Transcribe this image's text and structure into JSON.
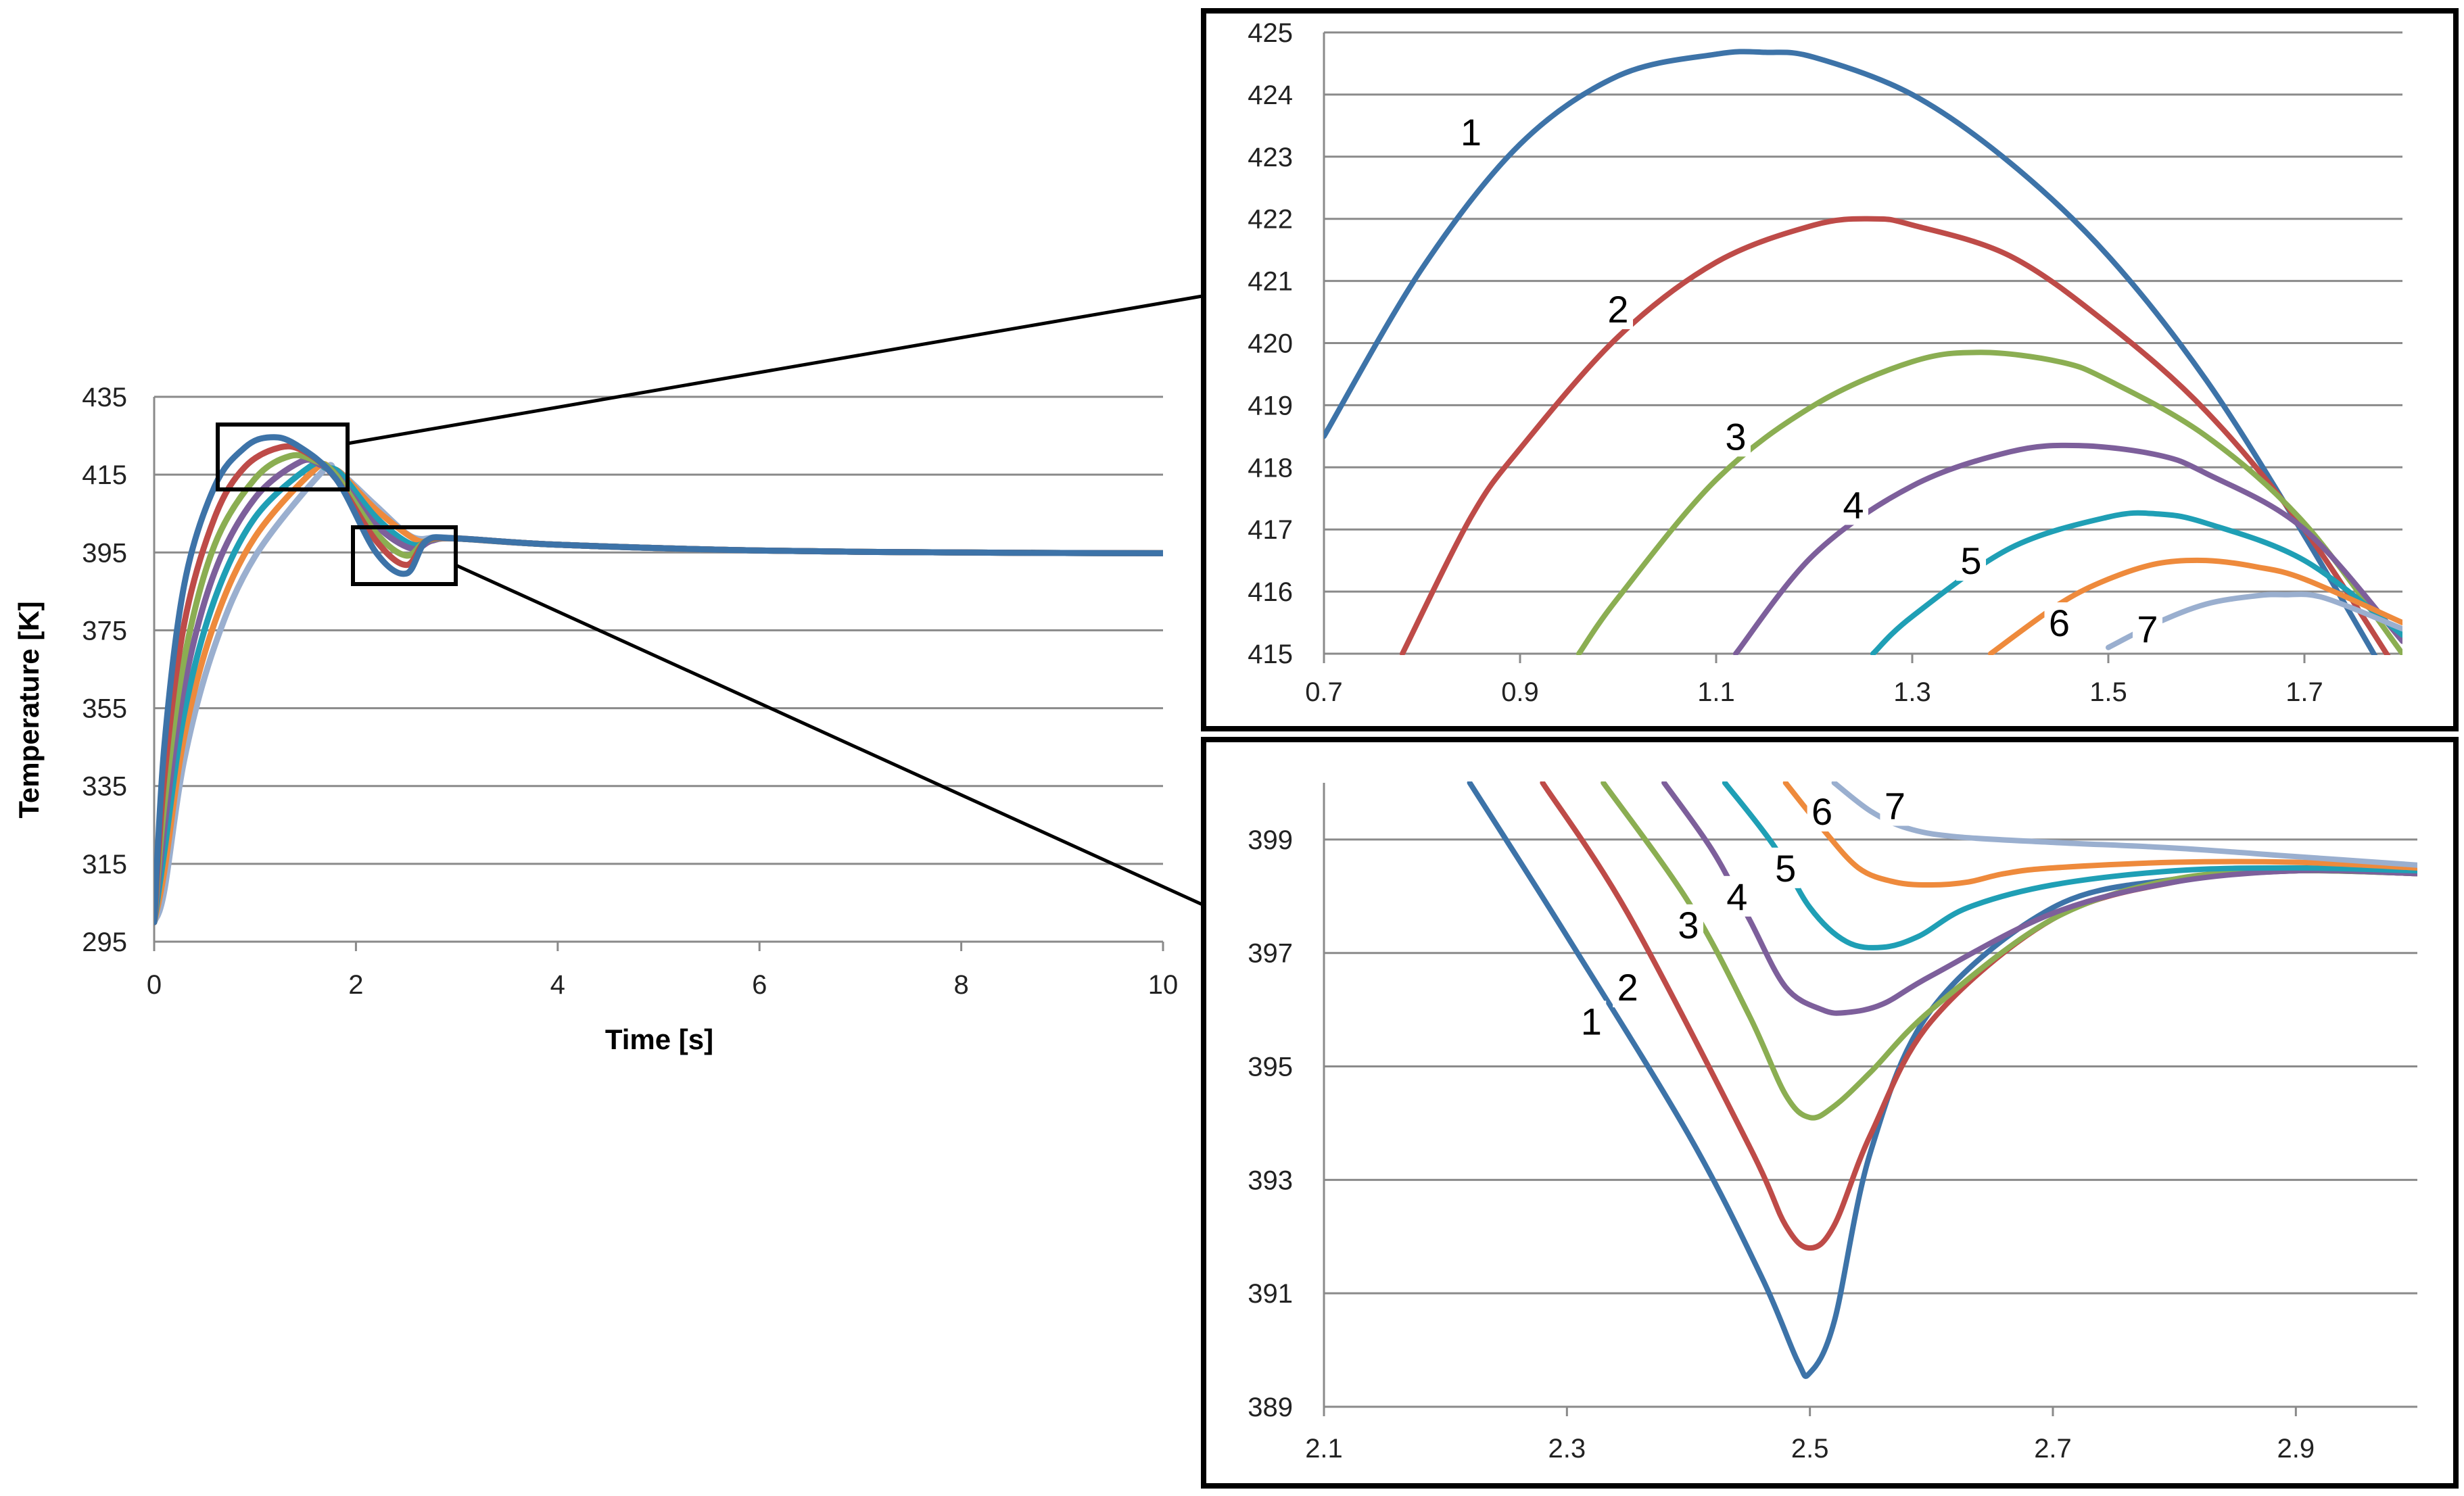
{
  "colors": {
    "series": [
      "#3d73a8",
      "#be4b48",
      "#8bae52",
      "#7d5f9b",
      "#1f9fb5",
      "#ee8a3c",
      "#9aafcf"
    ],
    "grid": "#8a8a8a",
    "frame": "#000000"
  },
  "chart_data": [
    {
      "type": "line",
      "xlabel": "Time [s]",
      "ylabel": "Temperature [K]",
      "xlim": [
        0,
        10
      ],
      "ylim": [
        295,
        435
      ],
      "xticks": [
        0,
        2,
        4,
        6,
        8,
        10
      ],
      "yticks": [
        295,
        315,
        335,
        355,
        375,
        395,
        415,
        435
      ],
      "grid": "horizontal",
      "series": [
        {
          "label": "1",
          "x": [
            0,
            0.1,
            0.3,
            0.6,
            0.9,
            1.15,
            1.4,
            1.8,
            2.2,
            2.5,
            2.7,
            3,
            4,
            6,
            8,
            10
          ],
          "y": [
            300,
            345,
            387,
            412,
            422,
            424.6,
            422.8,
            414,
            395,
            389.6,
            398,
            398.6,
            397,
            395.5,
            395,
            394.8
          ]
        },
        {
          "label": "2",
          "x": [
            0,
            0.1,
            0.3,
            0.6,
            0.9,
            1.25,
            1.5,
            1.8,
            2.2,
            2.5,
            2.7,
            3,
            4,
            6,
            8,
            10
          ],
          "y": [
            300,
            337,
            377,
            404,
            417,
            422,
            420.8,
            414,
            398,
            391.8,
            398,
            398.6,
            397,
            395.5,
            395,
            394.8
          ]
        },
        {
          "label": "3",
          "x": [
            0,
            0.1,
            0.3,
            0.6,
            1.0,
            1.35,
            1.6,
            1.8,
            2.2,
            2.5,
            2.7,
            3,
            4,
            6,
            8,
            10
          ],
          "y": [
            300,
            330,
            368,
            397,
            414,
            419.8,
            418.5,
            415,
            400,
            394.2,
            398,
            398.6,
            397,
            395.5,
            395,
            394.8
          ]
        },
        {
          "label": "4",
          "x": [
            0,
            0.1,
            0.3,
            0.6,
            1.0,
            1.45,
            1.65,
            1.8,
            2.2,
            2.55,
            2.75,
            3,
            4,
            6,
            8,
            10
          ],
          "y": [
            300,
            324,
            361,
            390,
            409,
            418.3,
            417.5,
            415.2,
            402,
            396,
            398,
            398.6,
            397,
            395.5,
            395,
            394.8
          ]
        },
        {
          "label": "5",
          "x": [
            0,
            0.1,
            0.3,
            0.6,
            1.0,
            1.55,
            1.7,
            1.85,
            2.2,
            2.55,
            2.75,
            3,
            4,
            6,
            8,
            10
          ],
          "y": [
            300,
            318,
            354,
            383,
            404,
            417.2,
            416.7,
            415.2,
            404,
            397.1,
            398.3,
            398.6,
            397,
            395.5,
            395,
            394.8
          ]
        },
        {
          "label": "6",
          "x": [
            0,
            0.1,
            0.3,
            0.6,
            1.0,
            1.6,
            1.75,
            1.85,
            2.2,
            2.6,
            2.8,
            3,
            4,
            6,
            8,
            10
          ],
          "y": [
            300,
            313,
            348,
            377,
            399,
            416.5,
            416.1,
            415.4,
            406,
            398.2,
            398.5,
            398.6,
            397,
            395.5,
            395,
            394.8
          ]
        },
        {
          "label": "7",
          "x": [
            0,
            0.1,
            0.3,
            0.6,
            1.0,
            1.67,
            1.78,
            1.85,
            2.2,
            2.55,
            2.8,
            3,
            4,
            6,
            8,
            10
          ],
          "y": [
            300,
            308,
            342,
            371,
            394,
            415.9,
            415.7,
            415.5,
            407,
            399.1,
            398.9,
            398.7,
            397,
            395.5,
            395,
            394.8
          ]
        }
      ]
    },
    {
      "type": "line",
      "xlim": [
        0.7,
        1.8
      ],
      "ylim": [
        415,
        425
      ],
      "xticks": [
        0.7,
        0.9,
        1.1,
        1.3,
        1.5,
        1.7
      ],
      "yticks": [
        415,
        416,
        417,
        418,
        419,
        420,
        421,
        422,
        423,
        424,
        425
      ],
      "grid": "horizontal",
      "series": [
        {
          "label": "1",
          "x": [
            0.7,
            0.8,
            0.9,
            1.0,
            1.1,
            1.15,
            1.2,
            1.3,
            1.4,
            1.5,
            1.6,
            1.7,
            1.8
          ],
          "y": [
            418.5,
            421.2,
            423.2,
            424.3,
            424.65,
            424.68,
            424.6,
            424.0,
            422.9,
            421.4,
            419.4,
            416.9,
            414.2
          ]
        },
        {
          "label": "2",
          "x": [
            0.78,
            0.85,
            0.9,
            1.0,
            1.1,
            1.2,
            1.26,
            1.3,
            1.4,
            1.5,
            1.6,
            1.7,
            1.8
          ],
          "y": [
            415,
            417.2,
            418.3,
            420.1,
            421.3,
            421.9,
            422.0,
            421.9,
            421.4,
            420.3,
            418.9,
            417.0,
            414.6
          ]
        },
        {
          "label": "3",
          "x": [
            0.96,
            1.0,
            1.1,
            1.2,
            1.3,
            1.37,
            1.45,
            1.5,
            1.6,
            1.7,
            1.8
          ],
          "y": [
            415,
            415.9,
            417.8,
            419.0,
            419.7,
            419.85,
            419.7,
            419.4,
            418.5,
            417.1,
            415.0
          ]
        },
        {
          "label": "4",
          "x": [
            1.12,
            1.2,
            1.3,
            1.4,
            1.47,
            1.55,
            1.6,
            1.7,
            1.8
          ],
          "y": [
            415,
            416.6,
            417.7,
            418.25,
            418.35,
            418.2,
            417.9,
            417.0,
            415.2
          ]
        },
        {
          "label": "5",
          "x": [
            1.26,
            1.3,
            1.4,
            1.5,
            1.55,
            1.6,
            1.7,
            1.8
          ],
          "y": [
            415,
            415.6,
            416.7,
            417.2,
            417.25,
            417.1,
            416.5,
            415.3
          ]
        },
        {
          "label": "6",
          "x": [
            1.38,
            1.45,
            1.5,
            1.55,
            1.6,
            1.65,
            1.7,
            1.8
          ],
          "y": [
            415,
            415.8,
            416.2,
            416.45,
            416.5,
            416.4,
            416.2,
            415.5
          ]
        },
        {
          "label": "7",
          "x": [
            1.5,
            1.55,
            1.6,
            1.65,
            1.68,
            1.72,
            1.8
          ],
          "y": [
            415.1,
            415.5,
            415.8,
            415.93,
            415.95,
            415.9,
            415.4
          ]
        }
      ]
    },
    {
      "type": "line",
      "xlim": [
        2.1,
        3.0
      ],
      "ylim": [
        389,
        400
      ],
      "xticks": [
        2.1,
        2.3,
        2.5,
        2.7,
        2.9
      ],
      "yticks": [
        389,
        391,
        393,
        395,
        397,
        399
      ],
      "grid": "horizontal",
      "series": [
        {
          "label": "1",
          "x": [
            2.22,
            2.3,
            2.4,
            2.46,
            2.49,
            2.5,
            2.52,
            2.55,
            2.6,
            2.7,
            2.8,
            2.9,
            3.0
          ],
          "y": [
            400,
            397.3,
            393.8,
            391.3,
            389.8,
            389.6,
            390.5,
            393.5,
            396.0,
            397.8,
            398.3,
            398.45,
            398.4
          ]
        },
        {
          "label": "2",
          "x": [
            2.28,
            2.35,
            2.45,
            2.48,
            2.5,
            2.52,
            2.55,
            2.6,
            2.7,
            2.8,
            2.9,
            3.0
          ],
          "y": [
            400,
            397.7,
            393.6,
            392.2,
            391.8,
            392.2,
            393.8,
            395.8,
            397.6,
            398.25,
            398.45,
            398.4
          ]
        },
        {
          "label": "3",
          "x": [
            2.33,
            2.4,
            2.45,
            2.48,
            2.5,
            2.52,
            2.55,
            2.6,
            2.7,
            2.8,
            2.9,
            3.0
          ],
          "y": [
            400,
            397.9,
            395.9,
            394.5,
            394.1,
            394.3,
            394.9,
            396.0,
            397.6,
            398.3,
            398.45,
            398.4
          ]
        },
        {
          "label": "4",
          "x": [
            2.38,
            2.42,
            2.45,
            2.48,
            2.51,
            2.53,
            2.56,
            2.6,
            2.7,
            2.8,
            2.9,
            3.0
          ],
          "y": [
            400,
            398.8,
            397.6,
            396.4,
            396.0,
            395.95,
            396.1,
            396.6,
            397.7,
            398.25,
            398.45,
            398.4
          ]
        },
        {
          "label": "5",
          "x": [
            2.43,
            2.47,
            2.5,
            2.53,
            2.56,
            2.59,
            2.63,
            2.7,
            2.8,
            2.9,
            3.0
          ],
          "y": [
            400,
            398.9,
            397.8,
            397.2,
            397.1,
            397.3,
            397.8,
            398.2,
            398.45,
            398.5,
            398.45
          ]
        },
        {
          "label": "6",
          "x": [
            2.48,
            2.51,
            2.54,
            2.57,
            2.6,
            2.63,
            2.66,
            2.7,
            2.8,
            2.9,
            3.0
          ],
          "y": [
            400,
            399.2,
            398.5,
            398.25,
            398.2,
            398.25,
            398.4,
            398.5,
            398.6,
            398.6,
            398.5
          ]
        },
        {
          "label": "7",
          "x": [
            2.52,
            2.55,
            2.58,
            2.62,
            2.7,
            2.8,
            2.9,
            3.0
          ],
          "y": [
            400,
            399.5,
            399.2,
            399.05,
            398.95,
            398.85,
            398.7,
            398.55
          ]
        }
      ]
    }
  ]
}
